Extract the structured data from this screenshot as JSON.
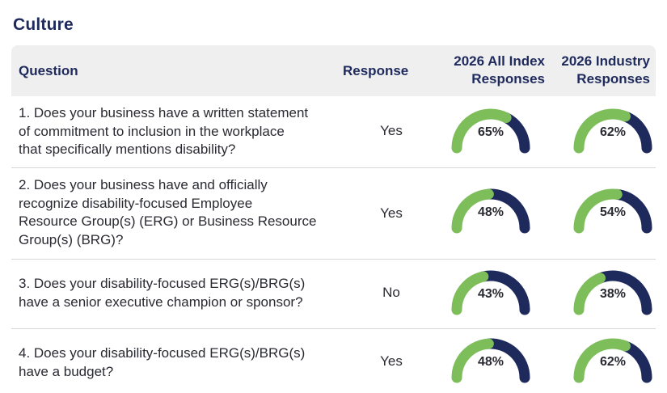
{
  "section_title": "Culture",
  "colors": {
    "filled": "#7dbd5a",
    "remaining": "#1f2a5c"
  },
  "headers": {
    "question": "Question",
    "response": "Response",
    "index_line1": "2026 All Index",
    "index_line2": "Responses",
    "industry_line1": "2026 Industry",
    "industry_line2": "Responses"
  },
  "rows": [
    {
      "lines": [
        "1. Does your business have a written statement",
        "of commitment to inclusion in the workplace",
        "that specifically mentions disability?"
      ],
      "response": "Yes",
      "index_pct": 65,
      "index_label": "65%",
      "industry_pct": 62,
      "industry_label": "62%"
    },
    {
      "lines": [
        "2. Does your business have and officially",
        "recognize disability-focused Employee",
        "Resource Group(s) (ERG) or Business Resource",
        "Group(s) (BRG)?"
      ],
      "response": "Yes",
      "index_pct": 48,
      "index_label": "48%",
      "industry_pct": 54,
      "industry_label": "54%"
    },
    {
      "lines": [
        "3. Does your disability-focused ERG(s)/BRG(s)",
        "have a senior executive champion or sponsor?"
      ],
      "response": "No",
      "index_pct": 43,
      "index_label": "43%",
      "industry_pct": 38,
      "industry_label": "38%"
    },
    {
      "lines": [
        "4. Does your disability-focused ERG(s)/BRG(s)",
        "have a budget?"
      ],
      "response": "Yes",
      "index_pct": 48,
      "index_label": "48%",
      "industry_pct": 62,
      "industry_label": "62%"
    }
  ]
}
